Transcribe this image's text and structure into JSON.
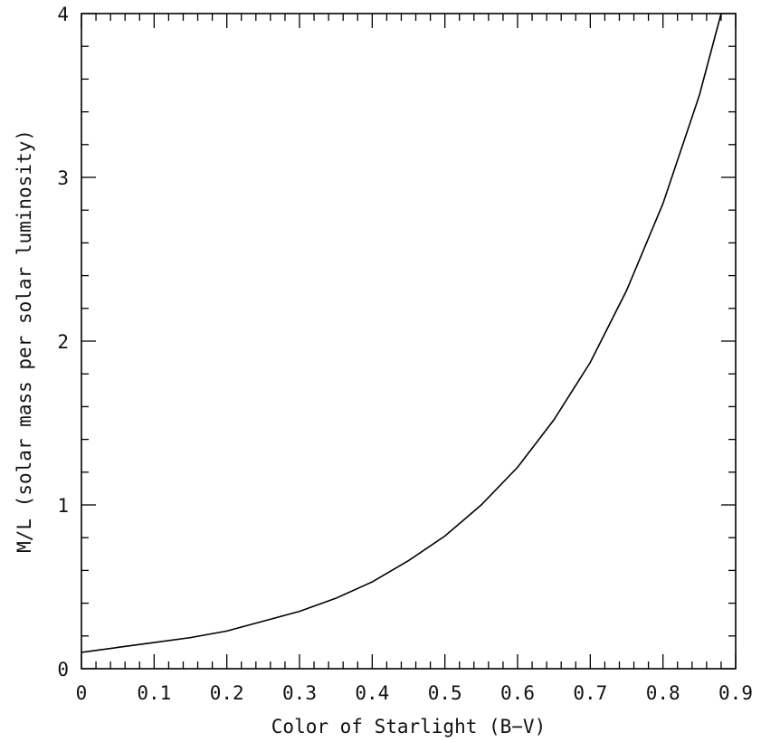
{
  "chart_data": {
    "type": "line",
    "title": "",
    "xlabel": "Color of Starlight (B−V)",
    "ylabel": "M/L (solar mass per solar luminosity)",
    "xlim": [
      0,
      0.9
    ],
    "ylim": [
      0,
      4
    ],
    "x_ticks": [
      "0",
      "0.1",
      "0.2",
      "0.3",
      "0.4",
      "0.5",
      "0.6",
      "0.7",
      "0.8",
      "0.9"
    ],
    "y_ticks": [
      "0",
      "1",
      "2",
      "3",
      "4"
    ],
    "grid": false,
    "series": [
      {
        "x": [
          0,
          0.05,
          0.1,
          0.15,
          0.2,
          0.25,
          0.3,
          0.35,
          0.4,
          0.45,
          0.5,
          0.55,
          0.6,
          0.65,
          0.7,
          0.75,
          0.8,
          0.85,
          0.88
        ],
        "y": [
          0.1,
          0.13,
          0.16,
          0.19,
          0.23,
          0.29,
          0.35,
          0.43,
          0.53,
          0.66,
          0.81,
          1.0,
          1.23,
          1.52,
          1.87,
          2.31,
          2.84,
          3.5,
          4.0
        ],
        "color": "#000000"
      }
    ]
  }
}
